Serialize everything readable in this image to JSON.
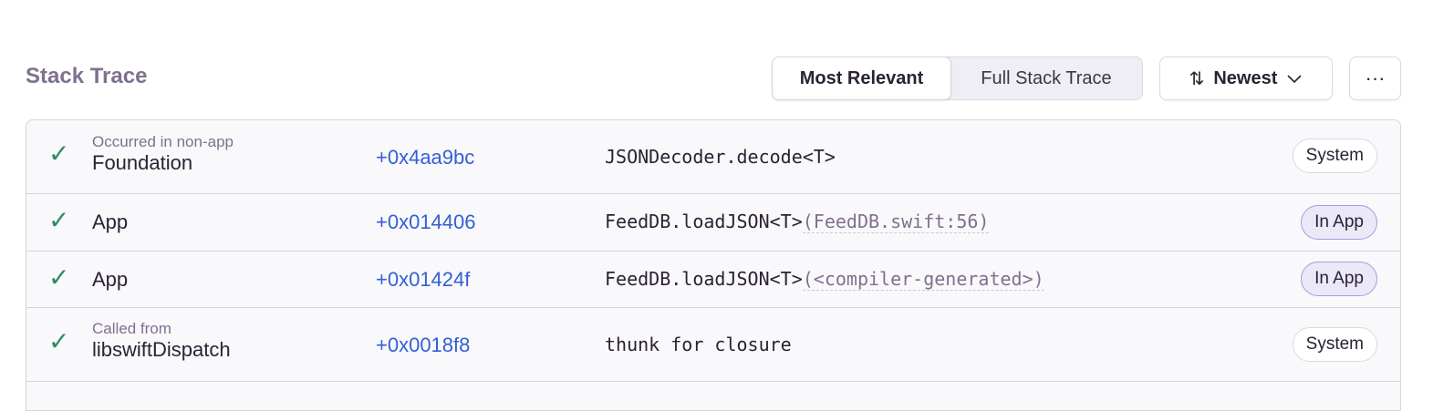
{
  "header": {
    "title": "Stack Trace",
    "views": [
      "Most Relevant",
      "Full Stack Trace"
    ],
    "active_view": "Most Relevant",
    "sort_label": "Newest",
    "more_label": "···"
  },
  "frames": [
    {
      "sublabel": "Occurred in non-app",
      "module": "Foundation",
      "address": "+0x4aa9bc",
      "function": "JSONDecoder.decode<T>",
      "location": "",
      "badge": "System"
    },
    {
      "sublabel": "",
      "module": "App",
      "address": "+0x014406",
      "function": "FeedDB.loadJSON<T>",
      "location": "(FeedDB.swift:56)",
      "badge": "In App"
    },
    {
      "sublabel": "",
      "module": "App",
      "address": "+0x01424f",
      "function": "FeedDB.loadJSON<T>",
      "location": "(<compiler-generated>)",
      "badge": "In App"
    },
    {
      "sublabel": "Called from",
      "module": "libswiftDispatch",
      "address": "+0x0018f8",
      "function": "thunk for closure",
      "location": "",
      "badge": "System"
    }
  ],
  "colors": {
    "check": "#2f8a68",
    "address": "#3360d5",
    "inapp_border": "#a99be0"
  }
}
